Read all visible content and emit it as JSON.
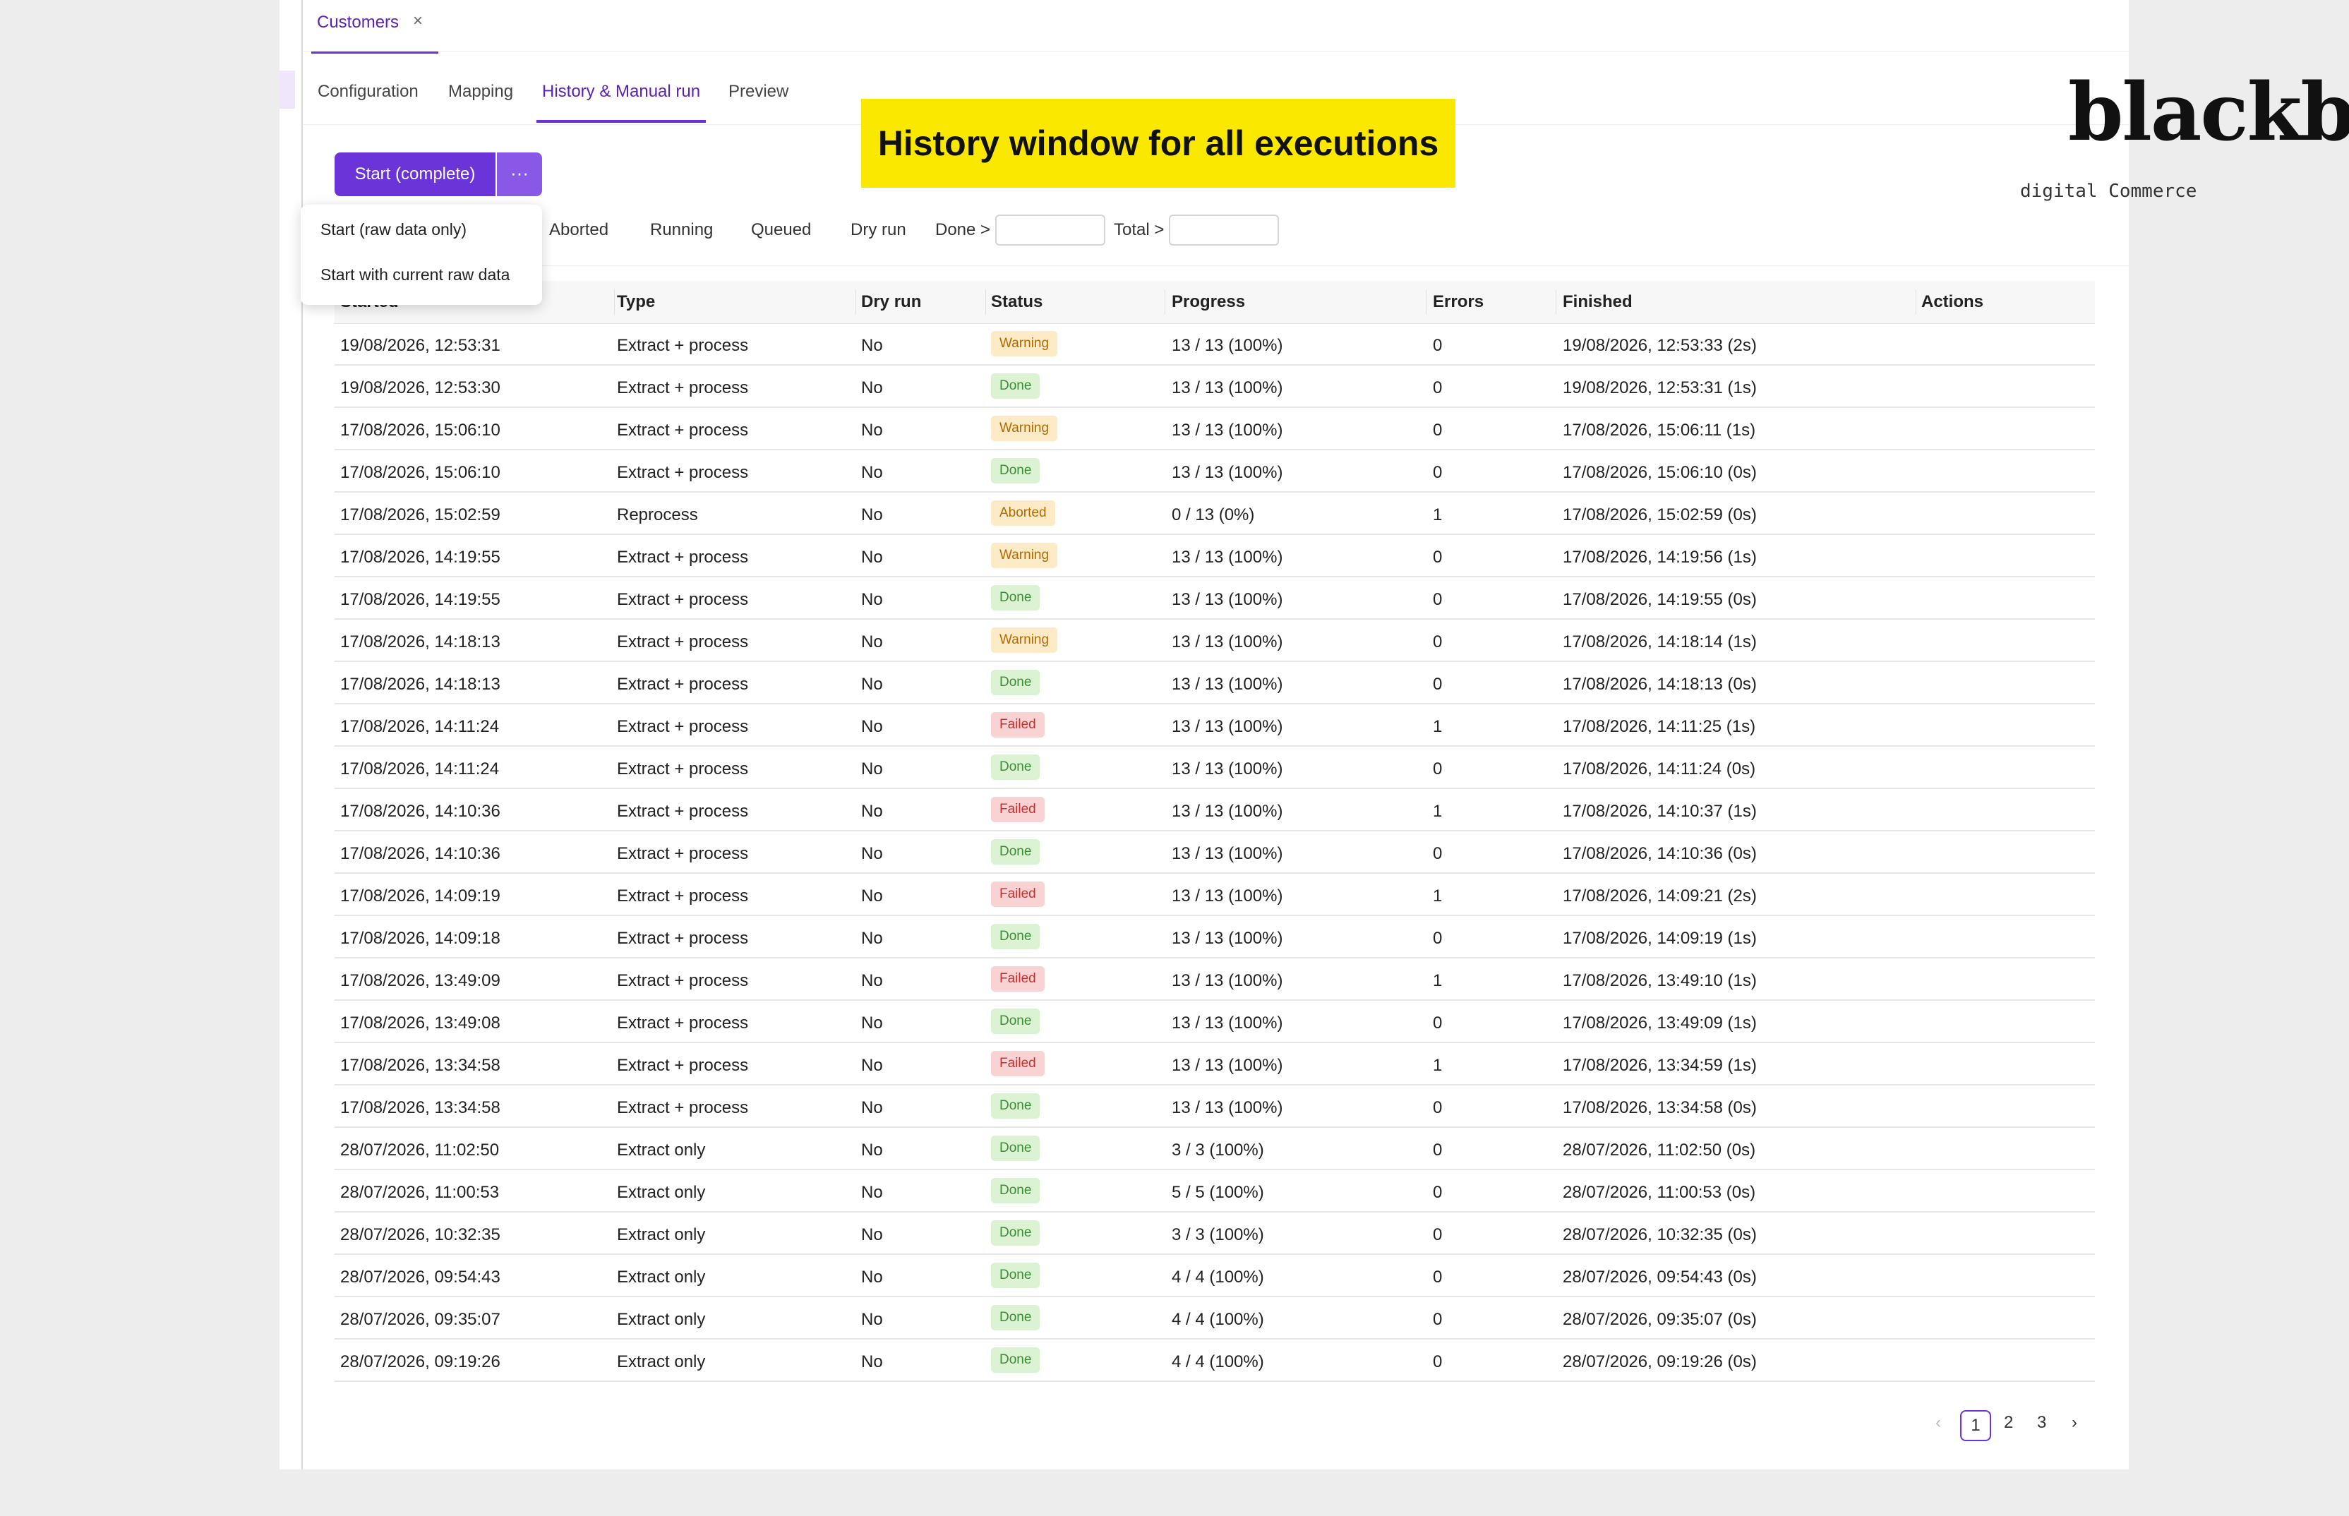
{
  "doc_tab": {
    "label": "Customers",
    "close": "×"
  },
  "tabs": [
    "Configuration",
    "Mapping",
    "History & Manual run",
    "Preview"
  ],
  "banner": {
    "text": "History window for all executions"
  },
  "logo": {
    "word": "blackbit",
    "sub": "digital Commerce"
  },
  "start": {
    "label": "Start (complete)",
    "more": "···"
  },
  "dropdown": [
    "Start (raw data only)",
    "Start with current raw data"
  ],
  "filters": {
    "aborted": "Aborted",
    "running": "Running",
    "queued": "Queued",
    "dry_run": "Dry run",
    "done_gt": "Done >",
    "total_gt": "Total >",
    "done_value": "",
    "total_value": ""
  },
  "columns": [
    "Started",
    "Type",
    "Dry run",
    "Status",
    "Progress",
    "Errors",
    "Finished",
    "Actions"
  ],
  "status_colors": {
    "Warning": {
      "bg": "#fdebc8",
      "fg": "#b26a00"
    },
    "Done": {
      "bg": "#dcf3d3",
      "fg": "#3d8b37"
    },
    "Aborted": {
      "bg": "#fdebc8",
      "fg": "#b26a00"
    },
    "Failed": {
      "bg": "#f9d3d3",
      "fg": "#c53030"
    }
  },
  "rows": [
    [
      "19/08/2026, 12:53:31",
      "Extract + process",
      "No",
      "Warning",
      "13 / 13 (100%)",
      "0",
      "19/08/2026, 12:53:33 (2s)"
    ],
    [
      "19/08/2026, 12:53:30",
      "Extract + process",
      "No",
      "Done",
      "13 / 13 (100%)",
      "0",
      "19/08/2026, 12:53:31 (1s)"
    ],
    [
      "17/08/2026, 15:06:10",
      "Extract + process",
      "No",
      "Warning",
      "13 / 13 (100%)",
      "0",
      "17/08/2026, 15:06:11 (1s)"
    ],
    [
      "17/08/2026, 15:06:10",
      "Extract + process",
      "No",
      "Done",
      "13 / 13 (100%)",
      "0",
      "17/08/2026, 15:06:10 (0s)"
    ],
    [
      "17/08/2026, 15:02:59",
      "Reprocess",
      "No",
      "Aborted",
      "0 / 13 (0%)",
      "1",
      "17/08/2026, 15:02:59 (0s)"
    ],
    [
      "17/08/2026, 14:19:55",
      "Extract + process",
      "No",
      "Warning",
      "13 / 13 (100%)",
      "0",
      "17/08/2026, 14:19:56 (1s)"
    ],
    [
      "17/08/2026, 14:19:55",
      "Extract + process",
      "No",
      "Done",
      "13 / 13 (100%)",
      "0",
      "17/08/2026, 14:19:55 (0s)"
    ],
    [
      "17/08/2026, 14:18:13",
      "Extract + process",
      "No",
      "Warning",
      "13 / 13 (100%)",
      "0",
      "17/08/2026, 14:18:14 (1s)"
    ],
    [
      "17/08/2026, 14:18:13",
      "Extract + process",
      "No",
      "Done",
      "13 / 13 (100%)",
      "0",
      "17/08/2026, 14:18:13 (0s)"
    ],
    [
      "17/08/2026, 14:11:24",
      "Extract + process",
      "No",
      "Failed",
      "13 / 13 (100%)",
      "1",
      "17/08/2026, 14:11:25 (1s)"
    ],
    [
      "17/08/2026, 14:11:24",
      "Extract + process",
      "No",
      "Done",
      "13 / 13 (100%)",
      "0",
      "17/08/2026, 14:11:24 (0s)"
    ],
    [
      "17/08/2026, 14:10:36",
      "Extract + process",
      "No",
      "Failed",
      "13 / 13 (100%)",
      "1",
      "17/08/2026, 14:10:37 (1s)"
    ],
    [
      "17/08/2026, 14:10:36",
      "Extract + process",
      "No",
      "Done",
      "13 / 13 (100%)",
      "0",
      "17/08/2026, 14:10:36 (0s)"
    ],
    [
      "17/08/2026, 14:09:19",
      "Extract + process",
      "No",
      "Failed",
      "13 / 13 (100%)",
      "1",
      "17/08/2026, 14:09:21 (2s)"
    ],
    [
      "17/08/2026, 14:09:18",
      "Extract + process",
      "No",
      "Done",
      "13 / 13 (100%)",
      "0",
      "17/08/2026, 14:09:19 (1s)"
    ],
    [
      "17/08/2026, 13:49:09",
      "Extract + process",
      "No",
      "Failed",
      "13 / 13 (100%)",
      "1",
      "17/08/2026, 13:49:10 (1s)"
    ],
    [
      "17/08/2026, 13:49:08",
      "Extract + process",
      "No",
      "Done",
      "13 / 13 (100%)",
      "0",
      "17/08/2026, 13:49:09 (1s)"
    ],
    [
      "17/08/2026, 13:34:58",
      "Extract + process",
      "No",
      "Failed",
      "13 / 13 (100%)",
      "1",
      "17/08/2026, 13:34:59 (1s)"
    ],
    [
      "17/08/2026, 13:34:58",
      "Extract + process",
      "No",
      "Done",
      "13 / 13 (100%)",
      "0",
      "17/08/2026, 13:34:58 (0s)"
    ],
    [
      "28/07/2026, 11:02:50",
      "Extract only",
      "No",
      "Done",
      "3 / 3 (100%)",
      "0",
      "28/07/2026, 11:02:50 (0s)"
    ],
    [
      "28/07/2026, 11:00:53",
      "Extract only",
      "No",
      "Done",
      "5 / 5 (100%)",
      "0",
      "28/07/2026, 11:00:53 (0s)"
    ],
    [
      "28/07/2026, 10:32:35",
      "Extract only",
      "No",
      "Done",
      "3 / 3 (100%)",
      "0",
      "28/07/2026, 10:32:35 (0s)"
    ],
    [
      "28/07/2026, 09:54:43",
      "Extract only",
      "No",
      "Done",
      "4 / 4 (100%)",
      "0",
      "28/07/2026, 09:54:43 (0s)"
    ],
    [
      "28/07/2026, 09:35:07",
      "Extract only",
      "No",
      "Done",
      "4 / 4 (100%)",
      "0",
      "28/07/2026, 09:35:07 (0s)"
    ],
    [
      "28/07/2026, 09:19:26",
      "Extract only",
      "No",
      "Done",
      "4 / 4 (100%)",
      "0",
      "28/07/2026, 09:19:26 (0s)"
    ]
  ],
  "pagination": {
    "prev": "‹",
    "pages": [
      "1",
      "2",
      "3"
    ],
    "current": "1",
    "next": "›"
  }
}
